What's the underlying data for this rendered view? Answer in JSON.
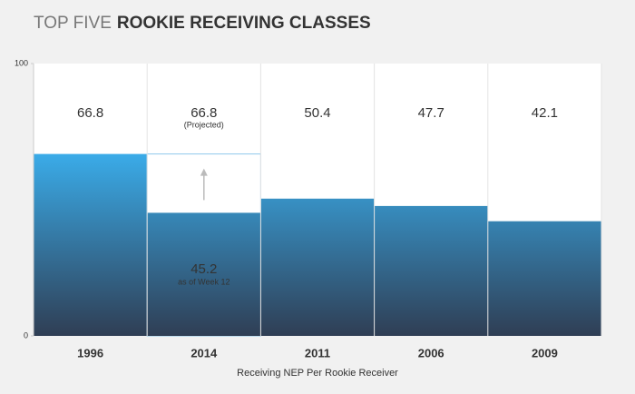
{
  "chart_data": {
    "type": "bar",
    "title_parts": [
      "TOP FIVE",
      "ROOKIE RECEIVING CLASSES"
    ],
    "categories": [
      "1996",
      "2014",
      "2011",
      "2006",
      "2009"
    ],
    "values": [
      66.8,
      45.2,
      50.4,
      47.7,
      42.1
    ],
    "projected": [
      null,
      66.8,
      null,
      null,
      null
    ],
    "annotations": {
      "projected": "(Projected)",
      "current": "as of Week 12"
    },
    "x_label": "Receiving NEP Per Rookie Receiver",
    "ylim": [
      0,
      100
    ],
    "yticks": [
      0,
      100
    ],
    "gradient": [
      "#3aabe8",
      "#2f3e54"
    ],
    "projected_color": "#8fc9ec"
  }
}
